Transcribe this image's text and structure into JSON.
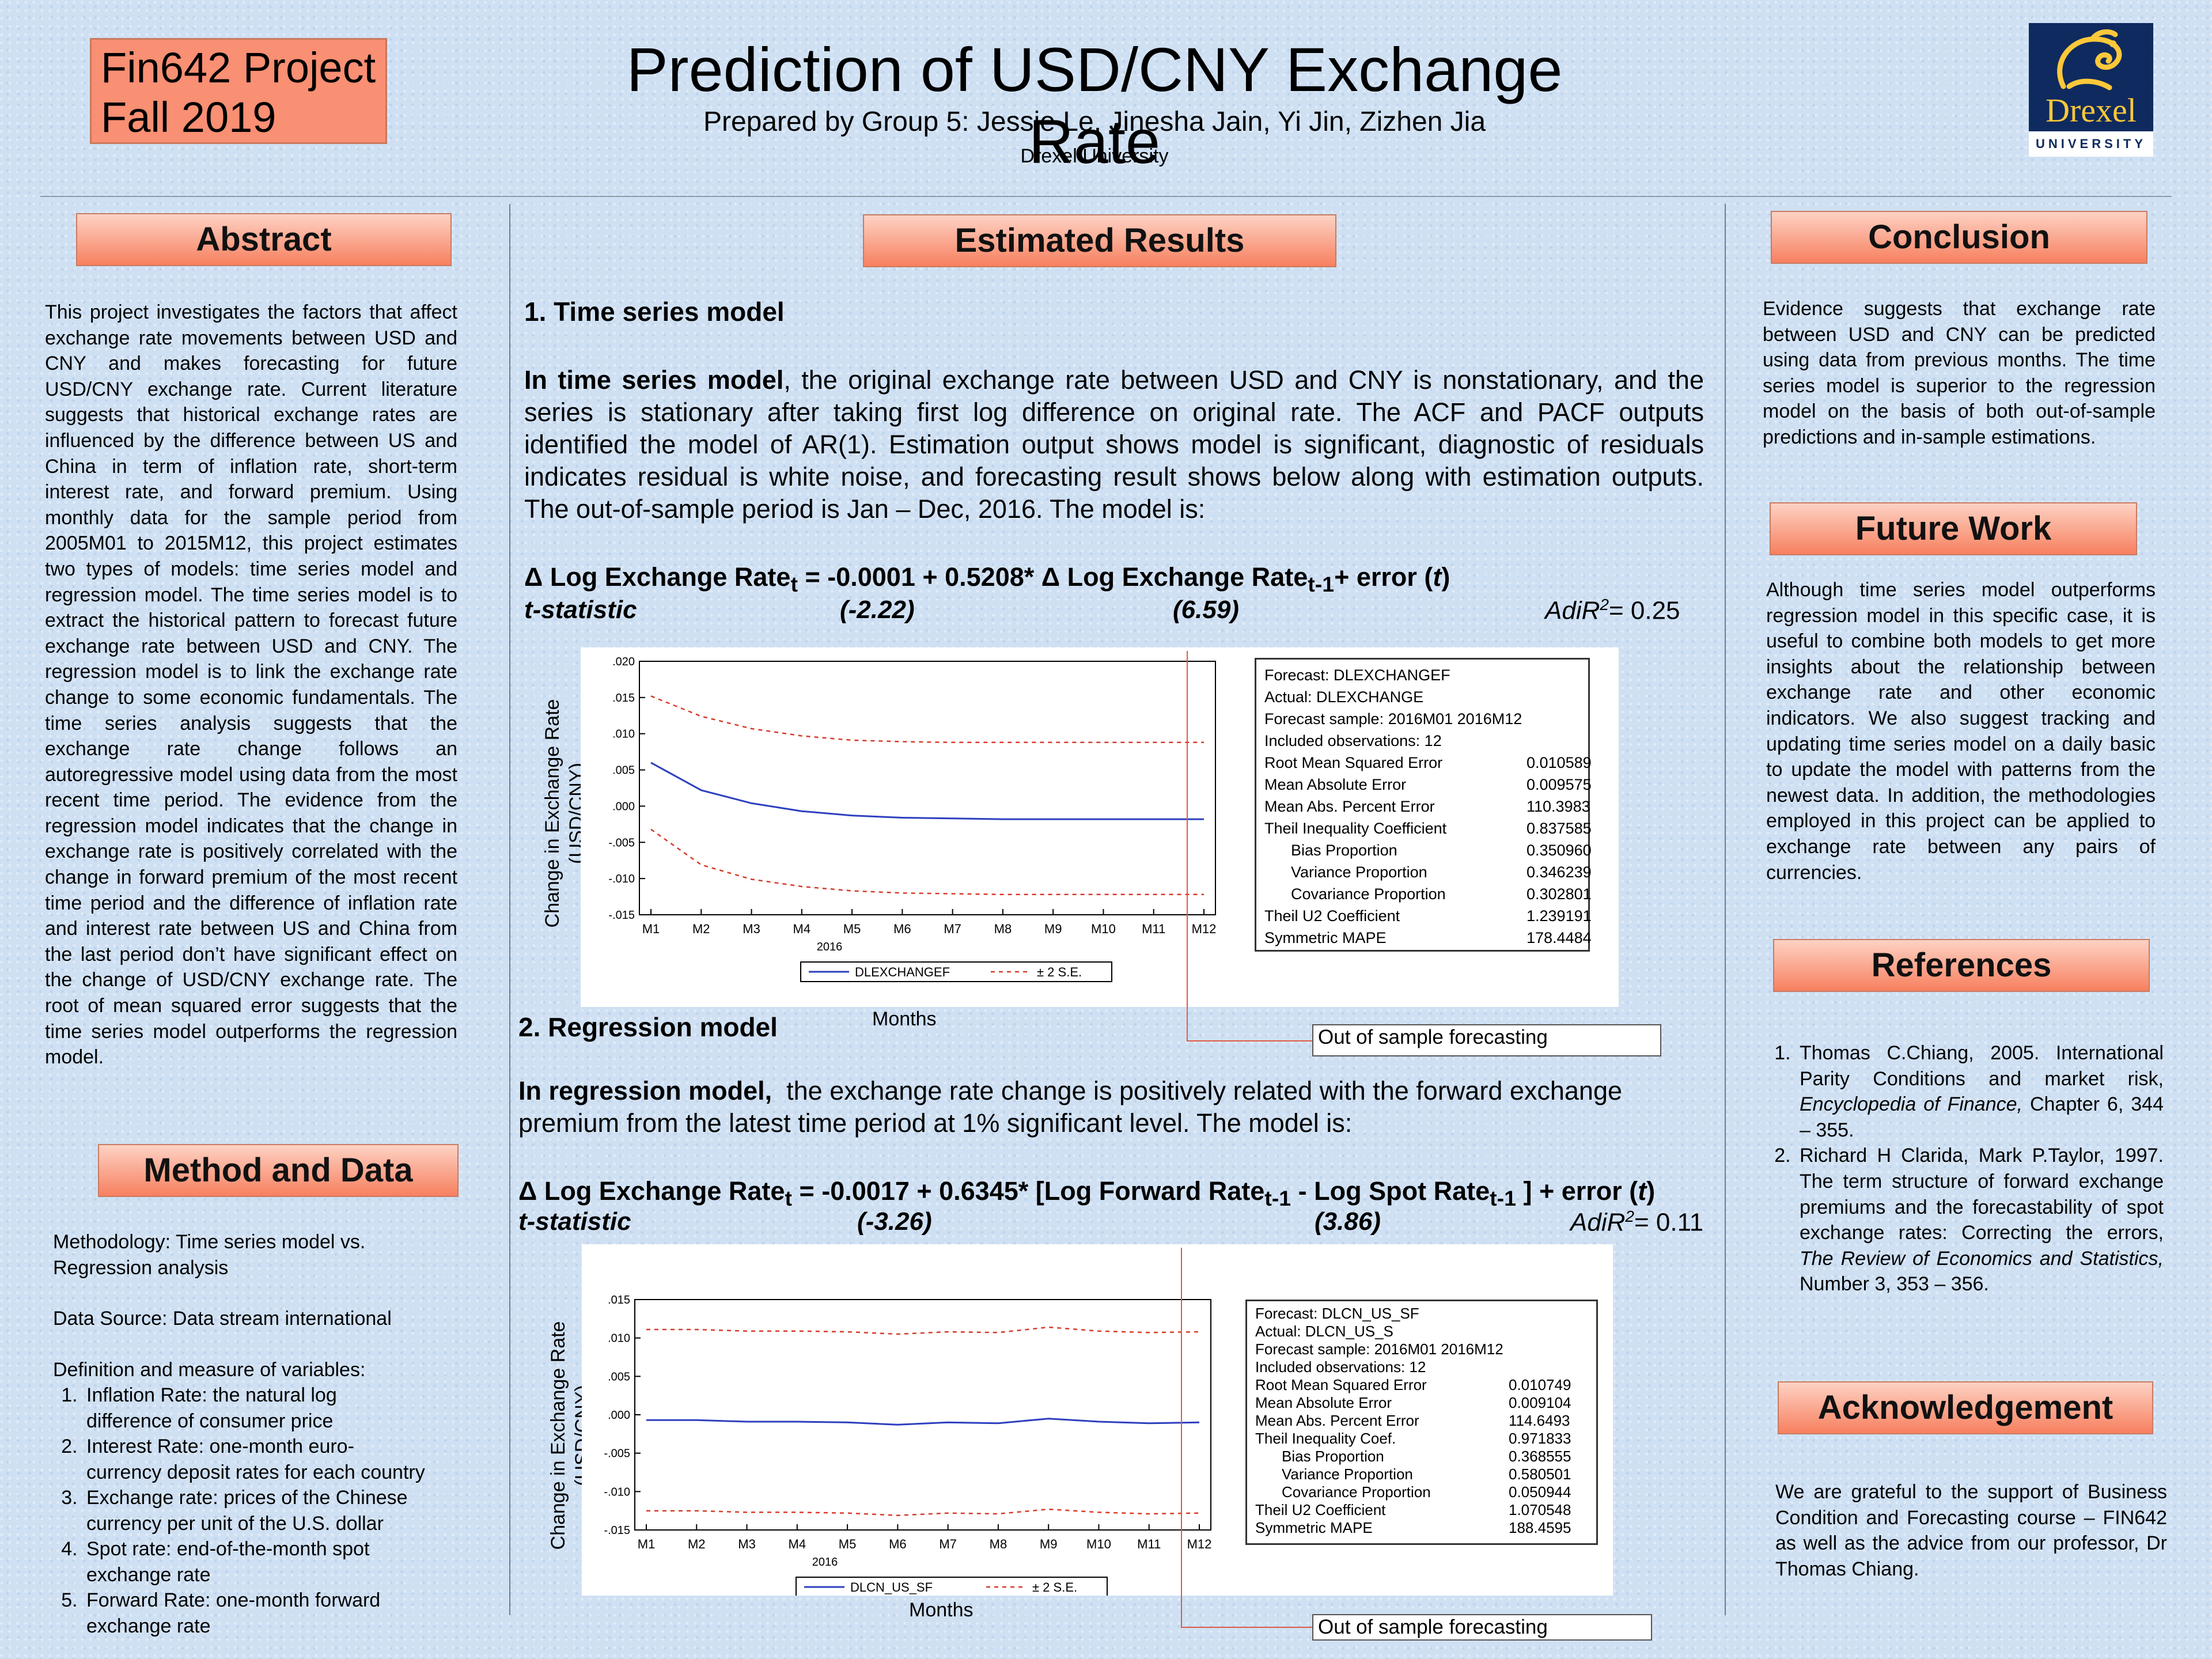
{
  "header": {
    "project_line1": "Fin642 Project",
    "project_line2": "Fall 2019",
    "title": "Prediction of USD/CNY Exchange Rate",
    "authors": "Prepared by Group 5: Jessie Le, Jinesha Jain, Yi Jin, Zizhen Jia",
    "university": "Drexel University",
    "logo_text": "Drexel",
    "logo_univ": "UNIVERSITY"
  },
  "abstract": {
    "heading": "Abstract",
    "text": "This project investigates the factors that affect exchange rate movements between USD and CNY and makes forecasting for future USD/CNY exchange rate. Current literature suggests that historical exchange rates are influenced by the difference between US and China in term of inflation rate, short-term interest rate, and forward premium. Using monthly data for the sample period from 2005M01 to 2015M12, this project estimates two types of models: time series model and regression model. The time series model is to extract the historical pattern to forecast future exchange rate between USD and CNY. The regression model is to link the exchange rate change to some economic fundamentals. The time series analysis suggests that the exchange rate change follows an autoregressive model using data from the most recent time period. The evidence from the regression model indicates that the change in exchange rate is positively correlated with the change in forward premium of the most recent time period and the difference of inflation rate and interest rate between US and China from the last period don’t have significant effect on the change of USD/CNY exchange rate. The root of mean squared error suggests that the time series model outperforms the regression model."
  },
  "method": {
    "heading": "Method and Data",
    "methodology_line1": "Methodology: Time series model vs.",
    "methodology_line2": "Regression analysis",
    "source": "Data Source: Data stream international",
    "definition_title": "Definition and measure of variables:",
    "items": [
      {
        "l1": "Inflation Rate: the natural log",
        "l2": "difference of consumer price"
      },
      {
        "l1": "Interest Rate: one-month euro-",
        "l2": "currency deposit rates for each country"
      },
      {
        "l1": "Exchange rate: prices of the Chinese",
        "l2": "currency per unit of the U.S. dollar"
      },
      {
        "l1": "Spot rate: end-of-the-month spot",
        "l2": "exchange rate"
      },
      {
        "l1": "Forward Rate: one-month forward",
        "l2": "exchange rate"
      }
    ]
  },
  "results": {
    "heading": "Estimated Results",
    "ts_title": "1. Time series model",
    "ts_lead": "In time series model",
    "ts_text": ", the original exchange rate between USD and CNY is nonstationary, and the series is stationary after taking first log difference on original rate. The ACF and PACF outputs identified the model of AR(1). Estimation output shows model is significant, diagnostic of residuals indicates residual is white noise, and forecasting result shows below along with estimation outputs. The out-of-sample period is Jan – Dec, 2016. The model is:",
    "ts_eq_a": "Δ Log Exchange Rate",
    "ts_eq_sub1": "t",
    "ts_eq_b": " = -0.0001 + 0.5208* Δ Log Exchange Rate",
    "ts_eq_sub2": "t-1",
    "ts_eq_c": "+ error (",
    "ts_eq_t": "t",
    "ts_eq_d": ")",
    "ts_tstat_label": "t-statistic",
    "ts_t1": "(-2.22)",
    "ts_t2": "(6.59)",
    "ts_adir_a": "AdiR",
    "ts_adir_sup": "2",
    "ts_adir_b": "= 0.25",
    "reg_title": "2. Regression model",
    "reg_lead": "In regression model,",
    "reg_text": "  the exchange rate change is positively related with the forward exchange premium from the latest time period at 1% significant level. The model is:",
    "reg_eq_a": "Δ Log Exchange Rate",
    "reg_eq_sub1": "t",
    "reg_eq_b": " = -0.0017 + 0.6345* [Log Forward Rate",
    "reg_eq_sub2": "t-1",
    "reg_eq_c": " - Log Spot Rate",
    "reg_eq_sub3": "t-1",
    "reg_eq_d": " ] + error (",
    "reg_eq_t": "t",
    "reg_eq_e": ")",
    "reg_tstat_label": "t-statistic",
    "reg_t1": "(-3.26)",
    "reg_t2": "(3.86)",
    "reg_adir_a": "AdiR",
    "reg_adir_sup": "2",
    "reg_adir_b": "= 0.11"
  },
  "chart_data": [
    {
      "type": "line",
      "ylabel": "Change in Exchange Rate (USD/CNY)",
      "xlabel": "Months",
      "x_year": "2016",
      "categories": [
        "M1",
        "M2",
        "M3",
        "M4",
        "M5",
        "M6",
        "M7",
        "M8",
        "M9",
        "M10",
        "M11",
        "M12"
      ],
      "yticks": [
        ".020",
        ".015",
        ".010",
        ".005",
        ".000",
        "-.005",
        "-.010",
        "-.015"
      ],
      "ylim": [
        -0.015,
        0.02
      ],
      "series": [
        {
          "name": "DLEXCHANGEF",
          "values": [
            0.006,
            0.0022,
            0.0004,
            -0.0007,
            -0.0013,
            -0.0016,
            -0.0017,
            -0.0018,
            -0.0018,
            -0.0018,
            -0.0018,
            -0.0018
          ]
        },
        {
          "name": "± 2 S.E.",
          "values": [
            0.0152,
            0.0124,
            0.0107,
            0.0097,
            0.0091,
            0.0089,
            0.0088,
            0.0088,
            0.0088,
            0.0088,
            0.0088,
            0.0088
          ]
        },
        {
          "name": "± 2 S.E.",
          "values": [
            -0.0032,
            -0.0081,
            -0.0101,
            -0.0111,
            -0.0117,
            -0.012,
            -0.0121,
            -0.0122,
            -0.0122,
            -0.0122,
            -0.0122,
            -0.0122
          ]
        }
      ],
      "stats": [
        {
          "label": "Forecast: DLEXCHANGEF",
          "value": ""
        },
        {
          "label": "Actual: DLEXCHANGE",
          "value": ""
        },
        {
          "label": "Forecast sample: 2016M01 2016M12",
          "value": ""
        },
        {
          "label": "Included observations: 12",
          "value": ""
        },
        {
          "label": "Root Mean Squared Error",
          "value": "0.010589"
        },
        {
          "label": "Mean Absolute Error",
          "value": "0.009575"
        },
        {
          "label": "Mean Abs. Percent Error",
          "value": "110.3983"
        },
        {
          "label": "Theil Inequality Coefficient",
          "value": "0.837585"
        },
        {
          "label": "Bias Proportion",
          "value": "0.350960",
          "indent": true
        },
        {
          "label": "Variance Proportion",
          "value": "0.346239",
          "indent": true
        },
        {
          "label": "Covariance Proportion",
          "value": "0.302801",
          "indent": true
        },
        {
          "label": "Theil U2 Coefficient",
          "value": "1.239191"
        },
        {
          "label": "Symmetric MAPE",
          "value": "178.4484"
        }
      ],
      "annotation": "Out of sample forecasting"
    },
    {
      "type": "line",
      "ylabel": "Change in Exchange Rate (USD/CNY)",
      "xlabel": "Months",
      "x_year": "2016",
      "categories": [
        "M1",
        "M2",
        "M3",
        "M4",
        "M5",
        "M6",
        "M7",
        "M8",
        "M9",
        "M10",
        "M11",
        "M12"
      ],
      "yticks": [
        ".015",
        ".010",
        ".005",
        ".000",
        "-.005",
        "-.010",
        "-.015"
      ],
      "ylim": [
        -0.015,
        0.015
      ],
      "series": [
        {
          "name": "DLCN_US_SF",
          "values": [
            -0.0007,
            -0.0007,
            -0.0009,
            -0.0009,
            -0.001,
            -0.0013,
            -0.001,
            -0.0011,
            -0.0005,
            -0.0009,
            -0.0011,
            -0.001
          ]
        },
        {
          "name": "± 2 S.E.",
          "values": [
            0.0111,
            0.0111,
            0.0109,
            0.0109,
            0.0108,
            0.0105,
            0.0108,
            0.0107,
            0.0114,
            0.0109,
            0.0107,
            0.0108
          ]
        },
        {
          "name": "± 2 S.E.",
          "values": [
            -0.0125,
            -0.0125,
            -0.0127,
            -0.0127,
            -0.0128,
            -0.0131,
            -0.0128,
            -0.0129,
            -0.0123,
            -0.0127,
            -0.0129,
            -0.0128
          ]
        }
      ],
      "stats": [
        {
          "label": "Forecast: DLCN_US_SF",
          "value": ""
        },
        {
          "label": "Actual: DLCN_US_S",
          "value": ""
        },
        {
          "label": "Forecast sample: 2016M01 2016M12",
          "value": ""
        },
        {
          "label": "Included observations: 12",
          "value": ""
        },
        {
          "label": "Root Mean Squared Error",
          "value": "0.010749"
        },
        {
          "label": "Mean Absolute Error",
          "value": "0.009104"
        },
        {
          "label": "Mean Abs. Percent Error",
          "value": "114.6493"
        },
        {
          "label": "Theil Inequality Coef.",
          "value": "0.971833"
        },
        {
          "label": "Bias Proportion",
          "value": "0.368555",
          "indent": true
        },
        {
          "label": "Variance Proportion",
          "value": "0.580501",
          "indent": true
        },
        {
          "label": "Covariance Proportion",
          "value": "0.050944",
          "indent": true
        },
        {
          "label": "Theil U2 Coefficient",
          "value": "1.070548"
        },
        {
          "label": "Symmetric MAPE",
          "value": "188.4595"
        }
      ],
      "annotation": "Out of sample forecasting"
    }
  ],
  "conclusion": {
    "heading": "Conclusion",
    "text": "Evidence suggests that exchange rate between USD and CNY can be predicted using data from previous months. The time series model is superior to the regression model on the basis of both out-of-sample predictions and in-sample estimations."
  },
  "future": {
    "heading": "Future Work",
    "text": "Although time series model outperforms regression model in this specific case, it is useful to combine both models to get more insights about the relationship between exchange rate and other economic indicators. We also suggest tracking and updating time series model on a daily basic to update the model with patterns from the newest data. In addition, the methodologies employed in this project can be applied to exchange rate between any pairs of currencies."
  },
  "references": {
    "heading": "References",
    "ref1_a": "Thomas C.Chiang, 2005. International Parity Conditions and market risk, ",
    "ref1_i": "Encyclopedia of Finance,",
    "ref1_b": " Chapter 6, 344 – 355.",
    "ref2_a": "Richard H Clarida, Mark P.Taylor, 1997. The term structure of forward exchange premiums and the forecastability of spot exchange rates: Correcting the errors, ",
    "ref2_i": "The Review of Economics and Statistics,",
    "ref2_b": " Number 3, 353 – 356."
  },
  "acknowledgement": {
    "heading": "Acknowledgement",
    "text": "We are grateful to the support of Business Condition and Forecasting course – FIN642 as well as the advice from our professor, Dr Thomas Chiang."
  }
}
